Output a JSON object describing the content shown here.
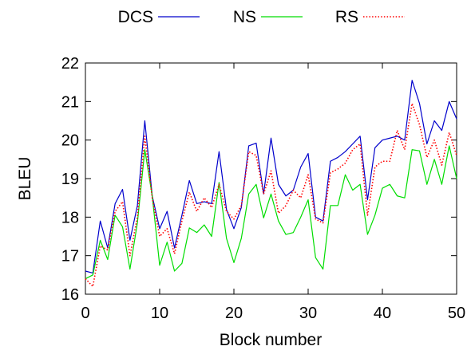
{
  "chart_data": {
    "type": "line",
    "title": "",
    "xlabel": "Block number",
    "ylabel": "BLEU",
    "xlim": [
      0,
      50
    ],
    "ylim": [
      16,
      22
    ],
    "x_ticks": [
      "0",
      "10",
      "20",
      "30",
      "40",
      "50"
    ],
    "y_ticks": [
      "16",
      "17",
      "18",
      "19",
      "20",
      "21",
      "22"
    ],
    "grid": false,
    "legend_position": "top",
    "x": [
      0,
      1,
      2,
      3,
      4,
      5,
      6,
      7,
      8,
      9,
      10,
      11,
      12,
      13,
      14,
      15,
      16,
      17,
      18,
      19,
      20,
      21,
      22,
      23,
      24,
      25,
      26,
      27,
      28,
      29,
      30,
      31,
      32,
      33,
      34,
      35,
      36,
      37,
      38,
      39,
      40,
      41,
      42,
      43,
      44,
      45,
      46,
      47,
      48,
      49,
      50
    ],
    "series": [
      {
        "name": "DCS",
        "color": "#0000cc",
        "style": "solid",
        "values": [
          16.6,
          16.55,
          17.9,
          17.2,
          18.35,
          18.72,
          17.4,
          18.3,
          20.5,
          18.55,
          17.7,
          18.15,
          17.2,
          18.05,
          18.95,
          18.35,
          18.4,
          18.35,
          19.7,
          18.2,
          17.7,
          18.25,
          19.85,
          19.92,
          18.6,
          20.05,
          18.85,
          18.55,
          18.7,
          19.3,
          19.65,
          18.0,
          17.9,
          19.45,
          19.55,
          19.7,
          19.9,
          20.1,
          18.45,
          19.8,
          20.0,
          20.05,
          20.1,
          20.0,
          21.55,
          20.95,
          19.9,
          20.5,
          20.25,
          21.0,
          20.55
        ]
      },
      {
        "name": "NS",
        "color": "#00dd00",
        "style": "solid",
        "values": [
          16.4,
          16.5,
          17.4,
          16.9,
          18.05,
          17.75,
          16.65,
          17.85,
          19.75,
          18.55,
          16.75,
          17.35,
          16.6,
          16.8,
          17.72,
          17.6,
          17.8,
          17.5,
          18.9,
          17.45,
          16.82,
          17.45,
          18.6,
          18.85,
          17.98,
          18.6,
          17.9,
          17.55,
          17.6,
          18.0,
          18.45,
          16.95,
          16.65,
          18.3,
          18.3,
          19.1,
          18.7,
          18.85,
          17.55,
          18.05,
          18.75,
          18.85,
          18.55,
          18.5,
          19.75,
          19.72,
          18.85,
          19.5,
          18.85,
          19.85,
          19.0
        ]
      },
      {
        "name": "RS",
        "color": "#ff0000",
        "style": "dotted",
        "values": [
          16.4,
          16.2,
          17.25,
          17.15,
          18.15,
          18.4,
          17.0,
          18.0,
          20.1,
          18.5,
          17.5,
          17.7,
          17.05,
          17.9,
          18.65,
          18.15,
          18.5,
          18.25,
          18.85,
          18.15,
          17.95,
          18.3,
          19.7,
          19.6,
          18.6,
          19.2,
          18.1,
          18.3,
          18.7,
          18.5,
          19.1,
          17.95,
          17.85,
          19.15,
          19.25,
          19.4,
          19.75,
          19.9,
          18.05,
          19.3,
          19.45,
          19.45,
          20.25,
          19.75,
          20.95,
          20.4,
          19.55,
          20.0,
          19.35,
          20.2,
          19.6
        ]
      }
    ]
  }
}
